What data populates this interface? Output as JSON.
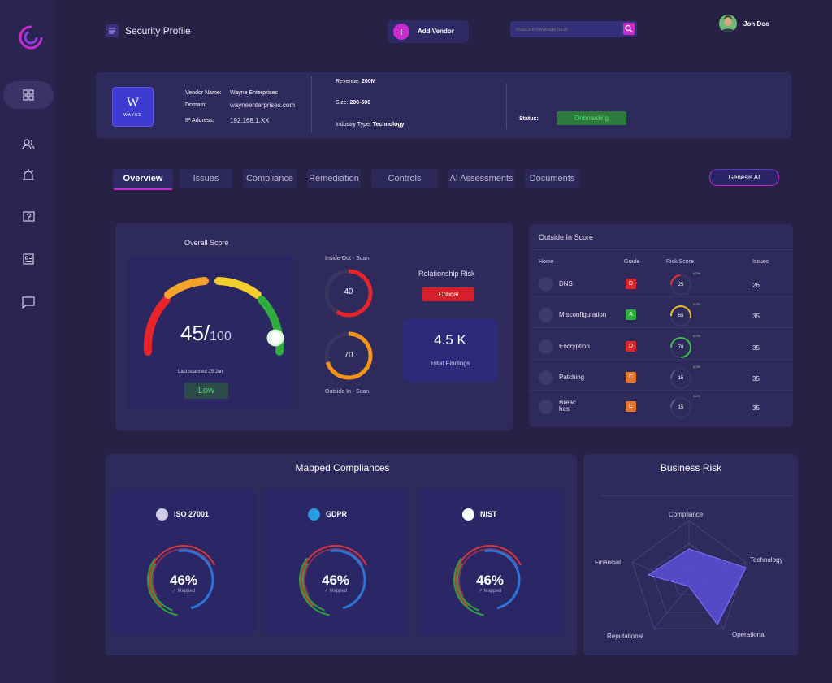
{
  "header": {
    "title": "Security Profile",
    "add_vendor_label": "Add Vendor",
    "search_placeholder": "Search Knowledge base",
    "user_name": "Joh Doe"
  },
  "vendor": {
    "logo_text": "W",
    "logo_sub": "WAYNE",
    "name_label": "Vendor Name:",
    "name": "Wayne Enterprises",
    "domain_label": "Domain:",
    "domain": "wayneenterprises.com",
    "ip_label": "IP Address:",
    "ip": "192.168.1.XX",
    "revenue_label": "Revenue:",
    "revenue": "200M",
    "size_label": "Size:",
    "size": "200-500",
    "industry_label": "Industry Type:",
    "industry": "Technology",
    "status_label": "Status:",
    "status": "Onboarding"
  },
  "tabs": [
    "Overview",
    "Issues",
    "Compliance",
    "Remediation",
    "Controls",
    "AI Assessments",
    "Documents"
  ],
  "genesis_label": "Genesis AI",
  "overall": {
    "title": "Overall Score",
    "score": "45/",
    "max": "100",
    "scanned": "Last scanned 25 Jan",
    "level": "Low",
    "inside_label": "Inside Out - Scan",
    "inside_value": "40",
    "outside_label": "Outside In - Scan",
    "outside_value": "70",
    "relationship_title": "Relationship Risk",
    "relationship_value": "Critical",
    "findings_value": "4.5 K",
    "findings_label": "Total Findings"
  },
  "outside_in": {
    "title": "Outside In Score",
    "columns": [
      "Home",
      "Grade",
      "Risk Score",
      "Issues"
    ],
    "rows": [
      {
        "name": "DNS",
        "grade": "D",
        "score": "25",
        "delta": "4.2%",
        "issues": "26",
        "color": "#e8362e"
      },
      {
        "name": "Misconfiguration",
        "grade": "A",
        "score": "55",
        "delta": "4.2%",
        "issues": "35",
        "color": "#e6c024"
      },
      {
        "name": "Encryption",
        "grade": "D",
        "score": "78",
        "delta": "4.2%",
        "issues": "35",
        "color": "#3bbf4a"
      },
      {
        "name": "Patching",
        "grade": "C",
        "score": "15",
        "delta": "4.2%",
        "issues": "35",
        "color": "#5c5690"
      },
      {
        "name": "Breac hes",
        "grade": "C",
        "score": "15",
        "delta": "4.2%",
        "issues": "35",
        "color": "#5c5690"
      }
    ]
  },
  "compliances": {
    "title": "Mapped Compliances",
    "items": [
      {
        "name": "ISO 27001",
        "percent": "46%",
        "sub": "↗ Mapped"
      },
      {
        "name": "GDPR",
        "percent": "46%",
        "sub": "↗ Mapped"
      },
      {
        "name": "NIST",
        "percent": "46%",
        "sub": "↗ Mapped"
      }
    ]
  },
  "business_risk": {
    "title": "Business Risk",
    "axes": [
      "Compliance",
      "Technology",
      "Operational",
      "Reputational",
      "Financial"
    ]
  },
  "colors": {
    "accent": "#c92bd0",
    "critical": "#d3202a",
    "low": "#4fd26a",
    "radar": "#5a4fd8"
  },
  "icons": [
    "logo-icon",
    "dashboard-icon",
    "users-icon",
    "alarm-icon",
    "help-icon",
    "report-icon",
    "chat-icon",
    "menu-icon",
    "plus-icon",
    "search-icon"
  ]
}
